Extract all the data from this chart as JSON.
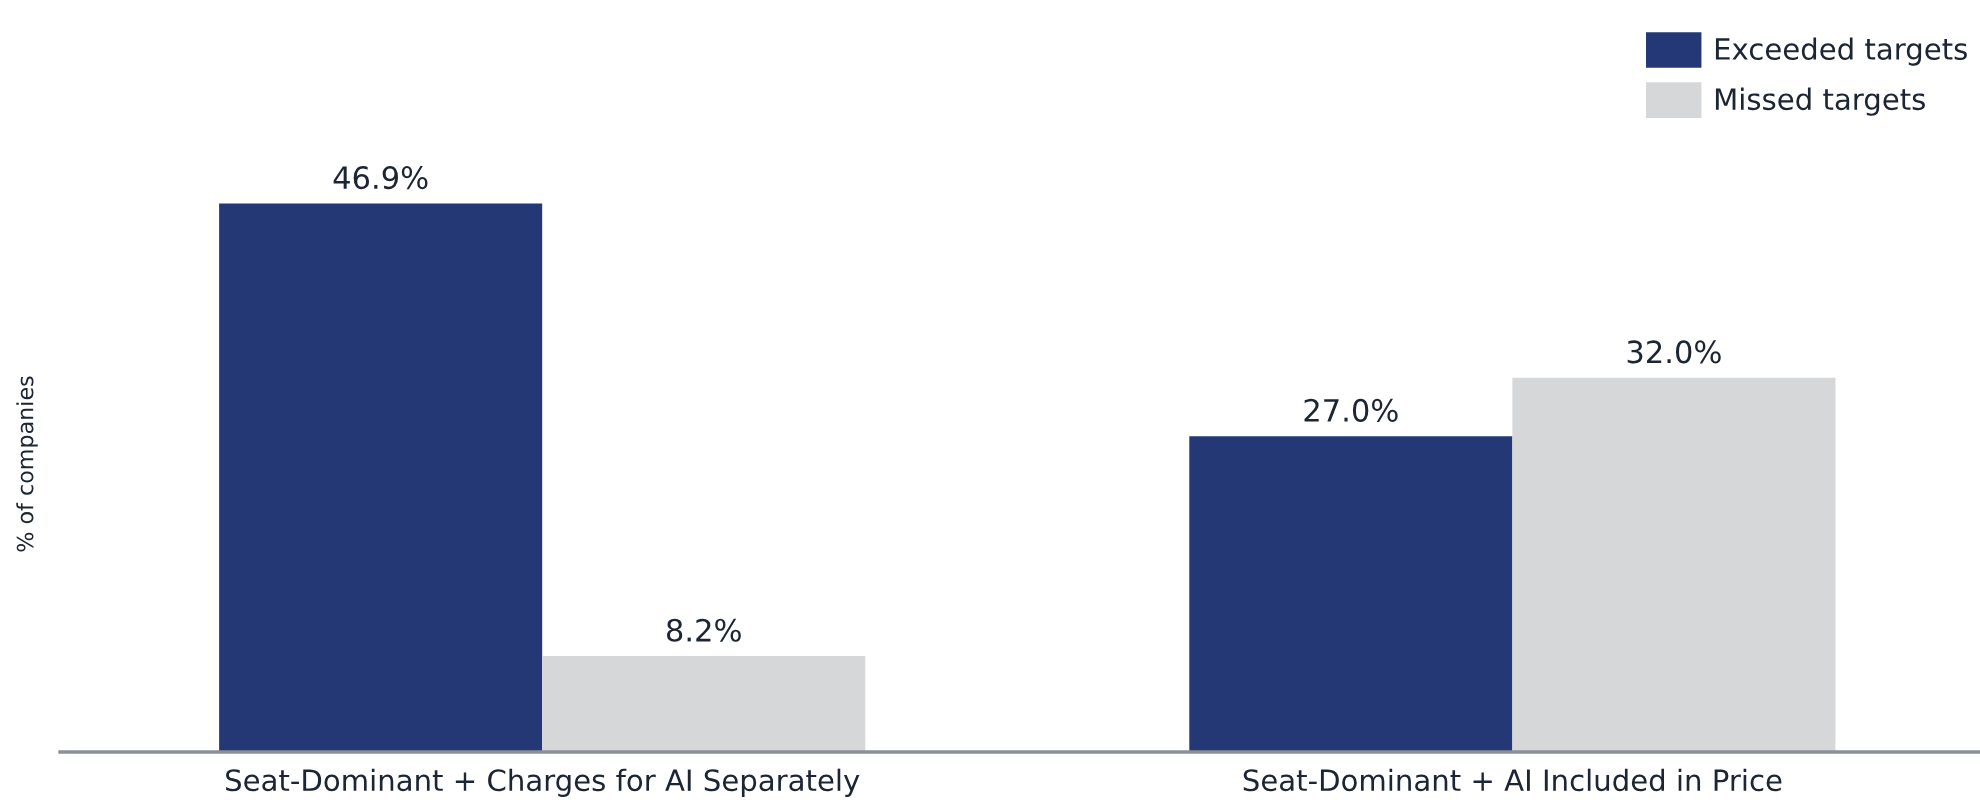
{
  "chart_data": {
    "type": "bar",
    "ylabel": "% of companies",
    "categories": [
      "Seat-Dominant + Charges for AI Separately",
      "Seat-Dominant + AI Included in Price"
    ],
    "series": [
      {
        "name": "Exceeded targets",
        "color": "#233874",
        "values": [
          46.9,
          27.0
        ],
        "value_labels": [
          "46.9%",
          "27.0%"
        ]
      },
      {
        "name": "Missed targets",
        "color": "#d6d7d9",
        "values": [
          8.2,
          32.0
        ],
        "value_labels": [
          "8.2%",
          "32.0%"
        ]
      }
    ],
    "tick_labels": "x",
    "legend": "top right"
  }
}
